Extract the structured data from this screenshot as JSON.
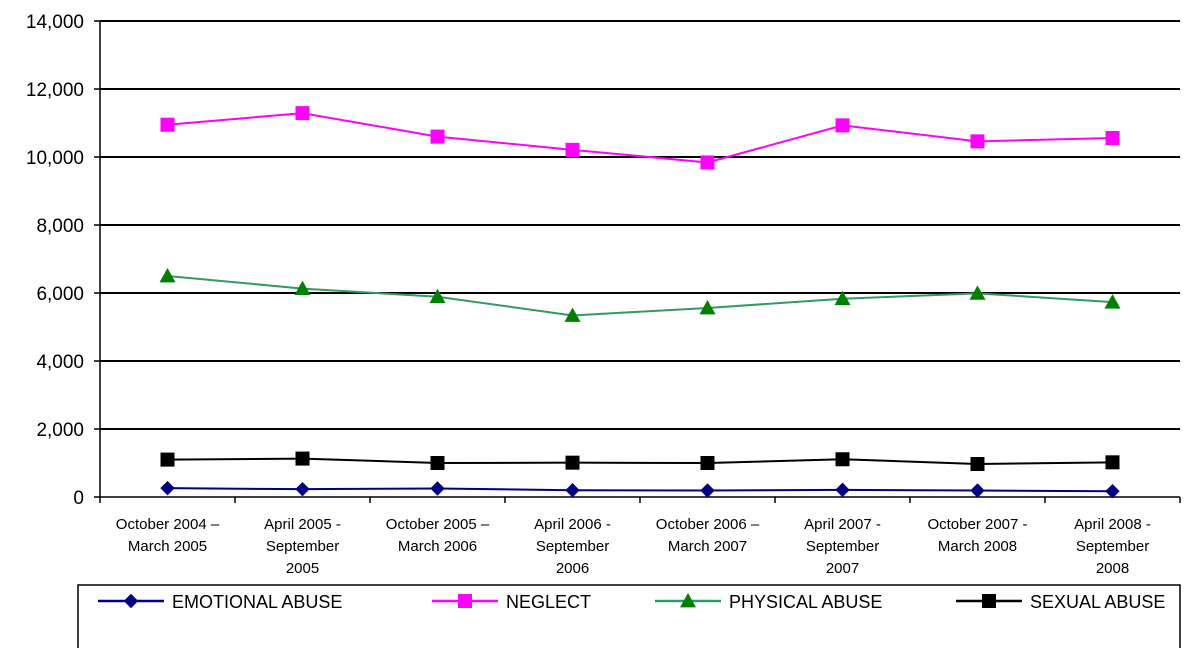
{
  "chart_data": {
    "type": "line",
    "categories": [
      [
        "October 2004 –",
        "March 2005"
      ],
      [
        "April 2005 -",
        "September",
        "2005"
      ],
      [
        "October 2005 –",
        "March 2006"
      ],
      [
        "April 2006 -",
        "September",
        "2006"
      ],
      [
        "October 2006 –",
        "March 2007"
      ],
      [
        "April 2007 -",
        "September",
        "2007"
      ],
      [
        "October 2007 -",
        "March 2008"
      ],
      [
        "April 2008 -",
        "September",
        "2008"
      ]
    ],
    "y_ticks": [
      "0",
      "2,000",
      "4,000",
      "6,000",
      "8,000",
      "10,000",
      "12,000",
      "14,000"
    ],
    "ylim": [
      0,
      14000
    ],
    "grid": true,
    "legend_position": "bottom",
    "series": [
      {
        "name": "EMOTIONAL ABUSE",
        "color": "#000080",
        "marker": "diamond",
        "values": [
          260,
          230,
          250,
          200,
          190,
          210,
          190,
          170
        ]
      },
      {
        "name": "NEGLECT",
        "color": "#ff00ff",
        "marker": "square",
        "values": [
          10950,
          11290,
          10600,
          10210,
          9840,
          10930,
          10460,
          10560
        ]
      },
      {
        "name": "PHYSICAL ABUSE",
        "color": "#339966",
        "marker_color": "#008000",
        "marker": "triangle",
        "values": [
          6500,
          6130,
          5890,
          5340,
          5560,
          5830,
          5990,
          5730
        ]
      },
      {
        "name": "SEXUAL ABUSE",
        "color": "#000000",
        "marker": "square",
        "values": [
          1100,
          1130,
          1000,
          1010,
          1000,
          1110,
          970,
          1020
        ]
      }
    ]
  }
}
